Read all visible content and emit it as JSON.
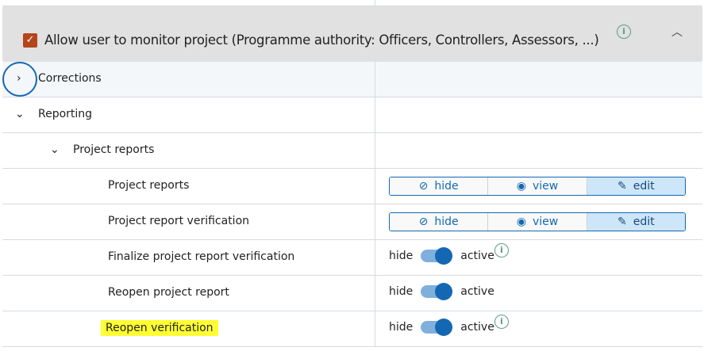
{
  "header": {
    "checkbox_checked": true,
    "title": "Allow user to monitor project (Programme authority: Officers, Controllers, Assessors, ...)"
  },
  "rows": [
    {
      "label": "Corrections",
      "expanded": false
    },
    {
      "label": "Reporting",
      "expanded": true
    },
    {
      "label": "Project reports",
      "expanded": true
    },
    {
      "label": "Project reports",
      "control": "segmented",
      "options": [
        "hide",
        "view",
        "edit"
      ],
      "selected": "edit"
    },
    {
      "label": "Project report verification",
      "control": "segmented",
      "options": [
        "hide",
        "view",
        "edit"
      ],
      "selected": "edit"
    },
    {
      "label": "Finalize project report verification",
      "control": "toggle",
      "off_label": "hide",
      "on_label": "active",
      "on": true,
      "info": true
    },
    {
      "label": "Reopen project report",
      "control": "toggle",
      "off_label": "hide",
      "on_label": "active",
      "on": true
    },
    {
      "label": "Reopen verification",
      "control": "toggle",
      "off_label": "hide",
      "on_label": "active",
      "on": true,
      "info": true,
      "highlighted": true
    }
  ],
  "colors": {
    "accent": "#1468b3",
    "checkbox": "#b5451b",
    "highlight": "#ffff33",
    "header_bg": "#e1e1e1"
  }
}
